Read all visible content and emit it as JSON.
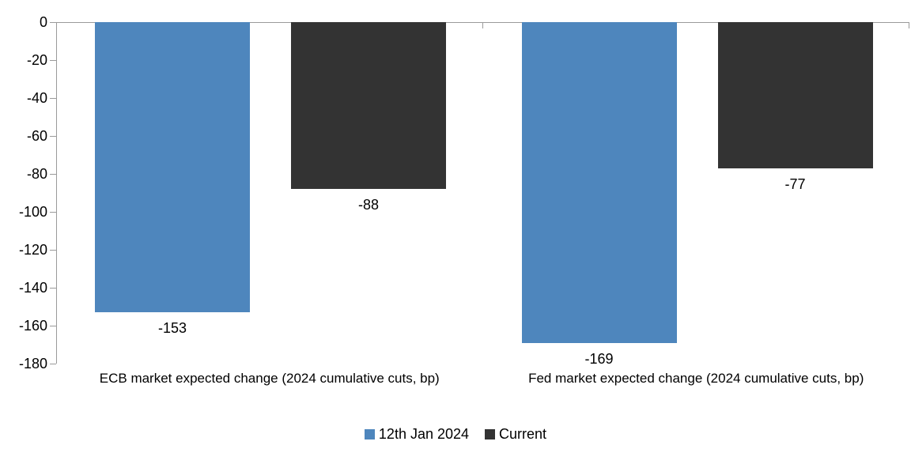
{
  "chart_data": {
    "type": "bar",
    "title": "",
    "xlabel": "",
    "ylabel": "",
    "categories": [
      "ECB market expected change (2024 cumulative cuts, bp)",
      "Fed market expected change (2024 cumulative cuts, bp)"
    ],
    "series": [
      {
        "name": "12th Jan 2024",
        "color": "#4E86BD",
        "values": [
          -153,
          -169
        ]
      },
      {
        "name": "Current",
        "color": "#333333",
        "values": [
          -88,
          -77
        ]
      }
    ],
    "data_labels": [
      [
        "-153",
        "-169"
      ],
      [
        "-88",
        "-77"
      ]
    ],
    "ylim": [
      -180,
      0
    ],
    "ytick_step": 20,
    "ytick_labels": [
      "0",
      "-20",
      "-40",
      "-60",
      "-80",
      "-100",
      "-120",
      "-140",
      "-160",
      "-180"
    ],
    "grid": false,
    "legend_position": "bottom",
    "axis_color": "#9A9A9A",
    "text_color": "#000000",
    "background_color": "#FFFFFF"
  }
}
